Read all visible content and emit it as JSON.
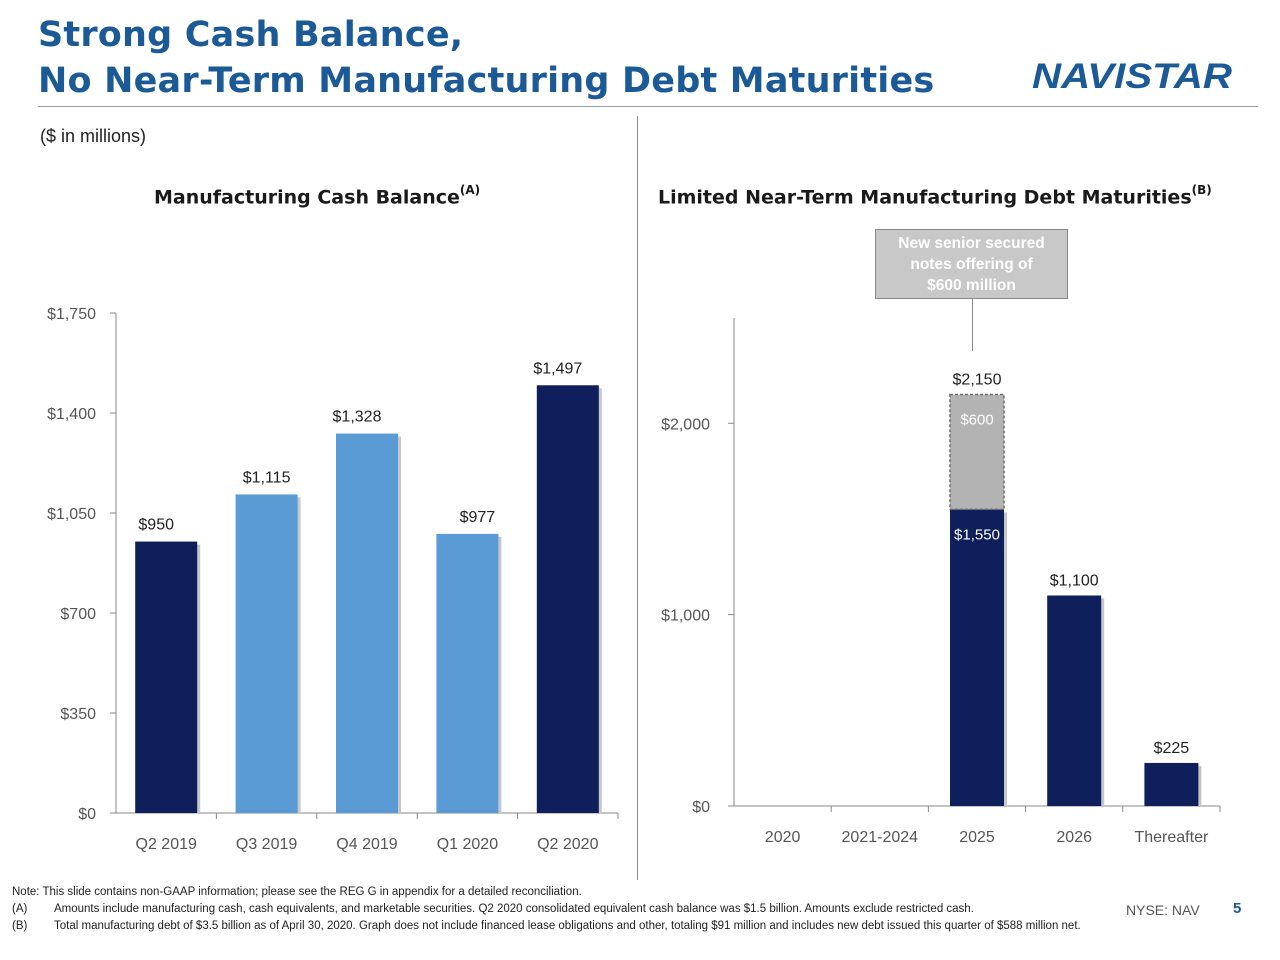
{
  "header": {
    "title_line1": "Strong Cash Balance,",
    "title_line2": "No Near-Term Manufacturing Debt Maturities",
    "logo_text": "NAVISTAR",
    "units": "($ in millions)"
  },
  "colors": {
    "title": "#1b5a96",
    "dark_navy": "#0e1f5b",
    "light_blue": "#5b9bd5",
    "gray_segment": "#b3b3b3"
  },
  "left_chart": {
    "title": "Manufacturing Cash Balance",
    "title_note": "(A)"
  },
  "right_chart": {
    "title": "Limited Near-Term Manufacturing Debt Maturities",
    "title_note": "(B)",
    "callout_line1": "New senior secured",
    "callout_line2": "notes offering of",
    "callout_line3": "$600 million"
  },
  "chart_data": [
    {
      "type": "bar",
      "title": "Manufacturing Cash Balance",
      "categories": [
        "Q2 2019",
        "Q3 2019",
        "Q4 2019",
        "Q1 2020",
        "Q2 2020"
      ],
      "values": [
        950,
        1115,
        1328,
        977,
        1497
      ],
      "labels": [
        "$950",
        "$1,115",
        "$1,328",
        "$977",
        "$1,497"
      ],
      "bar_colors": [
        "#0e1f5b",
        "#5b9bd5",
        "#5b9bd5",
        "#5b9bd5",
        "#0e1f5b"
      ],
      "ylim": [
        0,
        1750
      ],
      "yticks": [
        0,
        350,
        700,
        1050,
        1400,
        1750
      ],
      "ytick_labels": [
        "$0",
        "$350",
        "$700",
        "$1,050",
        "$1,400",
        "$1,750"
      ],
      "grid": false
    },
    {
      "type": "bar",
      "stacked": true,
      "title": "Limited Near-Term Manufacturing Debt Maturities",
      "categories": [
        "2020",
        "2021-2024",
        "2025",
        "2026",
        "Thereafter"
      ],
      "series": [
        {
          "values": [
            0,
            0,
            1550,
            1100,
            225
          ],
          "labels": [
            "",
            "",
            "$1,550",
            "",
            ""
          ],
          "color": "#0e1f5b"
        },
        {
          "values": [
            0,
            0,
            600,
            0,
            0
          ],
          "labels": [
            "",
            "",
            "$600",
            "",
            ""
          ],
          "color": "#b3b3b3"
        }
      ],
      "totals": [
        0,
        0,
        2150,
        1100,
        225
      ],
      "total_labels": [
        "",
        "",
        "$2,150",
        "$1,100",
        "$225"
      ],
      "ylim": [
        0,
        2550
      ],
      "yticks": [
        0,
        1000,
        2000
      ],
      "ytick_labels": [
        "$0",
        "$1,000",
        "$2,000"
      ],
      "grid": false
    }
  ],
  "footer": {
    "note": "Note: This slide contains non-GAAP information; please see the REG G in appendix for a detailed reconciliation.",
    "a_key": "(A)",
    "a_text": "Amounts include manufacturing cash, cash equivalents, and marketable securities. Q2 2020 consolidated equivalent cash balance was $1.5 billion. Amounts exclude restricted cash.",
    "b_key": "(B)",
    "b_text": "Total manufacturing debt of $3.5 billion as of April 30, 2020. Graph does not include financed lease obligations and other, totaling $91 million and includes new debt issued this quarter of $588 million net.",
    "ticker": "NYSE: NAV",
    "page": "5"
  }
}
